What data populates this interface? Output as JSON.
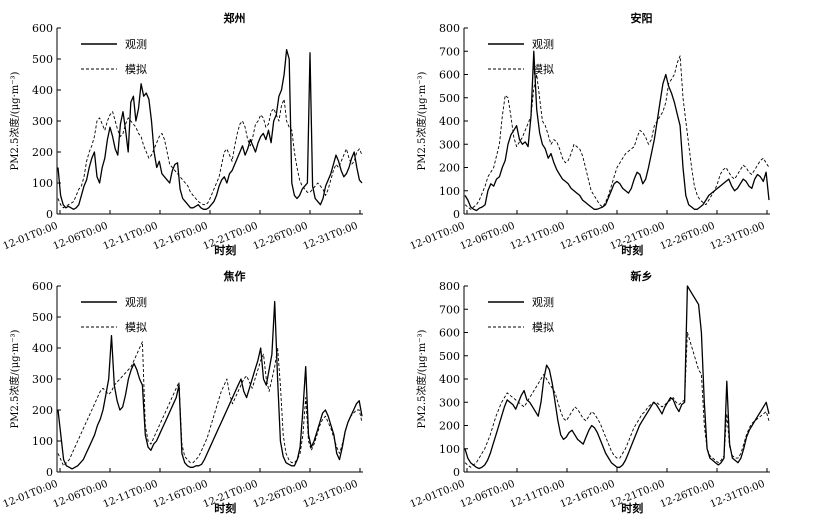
{
  "chart_data": [
    {
      "type": "line",
      "title": "郑州",
      "xlabel": "时刻",
      "ylabel": "PM2.5浓度/(μg·m⁻³)",
      "ylim": [
        0,
        600
      ],
      "yticks": [
        0,
        100,
        200,
        300,
        400,
        500,
        600
      ],
      "x_tick_labels": [
        "12-01T0:00",
        "12-06T0:00",
        "12-11T0:00",
        "12-16T0:00",
        "12-21T0:00",
        "12-26T0:00",
        "12-31T0:00"
      ],
      "legend_position": "top-left",
      "series": [
        {
          "name": "观测",
          "style": "solid",
          "values": [
            150,
            60,
            30,
            20,
            25,
            20,
            15,
            20,
            30,
            60,
            90,
            110,
            150,
            180,
            200,
            120,
            100,
            150,
            180,
            240,
            280,
            250,
            210,
            190,
            290,
            330,
            270,
            200,
            360,
            380,
            300,
            340,
            420,
            380,
            390,
            370,
            300,
            200,
            150,
            170,
            130,
            120,
            110,
            100,
            140,
            160,
            165,
            80,
            50,
            40,
            30,
            20,
            20,
            25,
            30,
            20,
            15,
            15,
            20,
            30,
            40,
            60,
            90,
            110,
            120,
            100,
            130,
            140,
            160,
            180,
            200,
            220,
            190,
            210,
            240,
            220,
            200,
            230,
            250,
            260,
            240,
            270,
            230,
            300,
            320,
            380,
            400,
            450,
            530,
            500,
            100,
            60,
            50,
            60,
            80,
            90,
            100,
            520,
            90,
            50,
            40,
            30,
            50,
            90,
            110,
            130,
            160,
            190,
            170,
            140,
            120,
            130,
            150,
            180,
            200,
            150,
            110,
            100
          ]
        },
        {
          "name": "模拟",
          "style": "dashed",
          "values": [
            50,
            30,
            20,
            25,
            30,
            35,
            40,
            60,
            80,
            90,
            120,
            170,
            200,
            220,
            250,
            300,
            310,
            290,
            270,
            300,
            320,
            330,
            300,
            270,
            250,
            260,
            290,
            310,
            300,
            290,
            280,
            260,
            250,
            220,
            200,
            180,
            190,
            210,
            230,
            250,
            260,
            240,
            200,
            160,
            150,
            140,
            130,
            120,
            110,
            100,
            90,
            70,
            60,
            50,
            40,
            35,
            30,
            30,
            40,
            60,
            80,
            100,
            120,
            160,
            200,
            210,
            190,
            170,
            220,
            260,
            290,
            300,
            280,
            240,
            220,
            250,
            290,
            300,
            320,
            310,
            280,
            290,
            330,
            340,
            320,
            300,
            350,
            370,
            300,
            280,
            270,
            200,
            150,
            110,
            90,
            80,
            70,
            70,
            80,
            90,
            100,
            90,
            80,
            60,
            80,
            110,
            140,
            160,
            150,
            170,
            190,
            210,
            180,
            160,
            170,
            200,
            210,
            190
          ]
        }
      ]
    },
    {
      "type": "line",
      "title": "安阳",
      "xlabel": "时刻",
      "ylabel": "PM2.5浓度/(μg·m⁻³)",
      "ylim": [
        0,
        800
      ],
      "yticks": [
        0,
        100,
        200,
        300,
        400,
        500,
        600,
        700,
        800
      ],
      "x_tick_labels": [
        "12-01T0:00",
        "12-06T0:00",
        "12-11T0:00",
        "12-16T0:00",
        "12-21T0:00",
        "12-26T0:00",
        "12-31T0:00"
      ],
      "legend_position": "top-left",
      "series": [
        {
          "name": "观测",
          "style": "solid",
          "values": [
            80,
            60,
            30,
            20,
            15,
            25,
            30,
            40,
            100,
            130,
            120,
            150,
            160,
            200,
            230,
            300,
            340,
            360,
            380,
            320,
            300,
            310,
            290,
            420,
            700,
            450,
            350,
            300,
            280,
            240,
            260,
            220,
            190,
            170,
            150,
            140,
            130,
            110,
            100,
            90,
            80,
            60,
            50,
            40,
            30,
            20,
            20,
            25,
            30,
            40,
            70,
            100,
            130,
            140,
            130,
            110,
            100,
            90,
            110,
            150,
            180,
            170,
            130,
            150,
            200,
            260,
            320,
            400,
            480,
            560,
            600,
            550,
            520,
            480,
            430,
            380,
            200,
            80,
            40,
            30,
            20,
            20,
            30,
            40,
            60,
            80,
            90,
            100,
            110,
            120,
            130,
            140,
            150,
            120,
            100,
            110,
            130,
            150,
            140,
            120,
            110,
            150,
            170,
            160,
            140,
            180,
            60
          ]
        },
        {
          "name": "模拟",
          "style": "dashed",
          "values": [
            40,
            30,
            20,
            30,
            40,
            60,
            90,
            120,
            160,
            180,
            200,
            250,
            300,
            420,
            510,
            500,
            420,
            330,
            290,
            310,
            330,
            360,
            390,
            420,
            540,
            600,
            500,
            400,
            380,
            340,
            300,
            320,
            310,
            280,
            240,
            220,
            230,
            260,
            300,
            290,
            280,
            250,
            200,
            150,
            100,
            80,
            60,
            40,
            30,
            50,
            80,
            120,
            160,
            200,
            220,
            240,
            260,
            270,
            280,
            290,
            330,
            360,
            350,
            330,
            300,
            320,
            380,
            400,
            420,
            440,
            480,
            560,
            580,
            600,
            650,
            680,
            500,
            400,
            300,
            200,
            120,
            80,
            60,
            50,
            40,
            60,
            80,
            100,
            130,
            170,
            190,
            200,
            180,
            160,
            150,
            170,
            190,
            210,
            200,
            180,
            170,
            190,
            210,
            230,
            240,
            220,
            200
          ]
        }
      ]
    },
    {
      "type": "line",
      "title": "焦作",
      "xlabel": "时刻",
      "ylabel": "PM2.5浓度/(μg·m⁻³)",
      "ylim": [
        0,
        600
      ],
      "yticks": [
        0,
        100,
        200,
        300,
        400,
        500,
        600
      ],
      "x_tick_labels": [
        "12-01T0:00",
        "12-06T0:00",
        "12-11T0:00",
        "12-16T0:00",
        "12-21T0:00",
        "12-26T0:00",
        "12-31T0:00"
      ],
      "legend_position": "top-left",
      "series": [
        {
          "name": "观测",
          "style": "solid",
          "values": [
            200,
            120,
            40,
            20,
            15,
            10,
            15,
            20,
            30,
            40,
            60,
            80,
            100,
            120,
            150,
            170,
            200,
            250,
            300,
            440,
            280,
            230,
            200,
            210,
            250,
            300,
            330,
            350,
            330,
            300,
            280,
            120,
            80,
            70,
            90,
            100,
            120,
            140,
            160,
            180,
            200,
            220,
            240,
            280,
            60,
            30,
            20,
            15,
            15,
            20,
            20,
            25,
            40,
            60,
            80,
            100,
            120,
            140,
            160,
            180,
            200,
            220,
            240,
            260,
            280,
            300,
            260,
            240,
            270,
            300,
            330,
            360,
            400,
            300,
            280,
            330,
            380,
            550,
            300,
            100,
            50,
            30,
            25,
            20,
            20,
            40,
            80,
            200,
            340,
            120,
            80,
            100,
            130,
            160,
            190,
            200,
            180,
            150,
            120,
            60,
            40,
            80,
            130,
            160,
            180,
            200,
            220,
            230,
            180
          ]
        },
        {
          "name": "模拟",
          "style": "dashed",
          "values": [
            60,
            40,
            20,
            30,
            40,
            60,
            80,
            100,
            120,
            140,
            160,
            180,
            200,
            220,
            240,
            260,
            270,
            260,
            250,
            260,
            280,
            290,
            300,
            310,
            320,
            330,
            340,
            360,
            380,
            400,
            420,
            150,
            100,
            90,
            110,
            130,
            150,
            170,
            190,
            210,
            230,
            250,
            270,
            290,
            90,
            50,
            40,
            30,
            30,
            40,
            50,
            70,
            90,
            110,
            140,
            170,
            200,
            230,
            260,
            280,
            300,
            250,
            220,
            240,
            260,
            280,
            300,
            310,
            290,
            270,
            300,
            330,
            360,
            380,
            300,
            260,
            300,
            340,
            400,
            280,
            120,
            60,
            40,
            30,
            30,
            40,
            60,
            120,
            240,
            100,
            70,
            90,
            120,
            150,
            170,
            180,
            160,
            140,
            110,
            80,
            60,
            90,
            130,
            160,
            180,
            190,
            200,
            200,
            160
          ]
        }
      ]
    },
    {
      "type": "line",
      "title": "新乡",
      "xlabel": "时刻",
      "ylabel": "PM2.5浓度/(μg·m⁻³)",
      "ylim": [
        0,
        800
      ],
      "yticks": [
        0,
        100,
        200,
        300,
        400,
        500,
        600,
        700,
        800
      ],
      "x_tick_labels": [
        "12-01T0:00",
        "12-06T0:00",
        "12-11T0:00",
        "12-16T0:00",
        "12-21T0:00",
        "12-26T0:00",
        "12-31T0:00"
      ],
      "legend_position": "top-left",
      "series": [
        {
          "name": "观测",
          "style": "solid",
          "values": [
            100,
            60,
            40,
            30,
            20,
            15,
            20,
            30,
            50,
            80,
            120,
            160,
            200,
            240,
            280,
            310,
            300,
            290,
            270,
            300,
            330,
            350,
            310,
            300,
            280,
            260,
            240,
            300,
            400,
            460,
            440,
            380,
            300,
            220,
            160,
            140,
            150,
            170,
            180,
            160,
            140,
            130,
            120,
            150,
            180,
            200,
            190,
            170,
            140,
            110,
            80,
            60,
            40,
            30,
            20,
            20,
            30,
            50,
            80,
            110,
            140,
            170,
            200,
            220,
            240,
            260,
            280,
            300,
            290,
            270,
            250,
            280,
            300,
            320,
            310,
            280,
            260,
            290,
            300,
            800,
            780,
            760,
            740,
            720,
            600,
            300,
            100,
            60,
            50,
            40,
            30,
            40,
            60,
            390,
            120,
            60,
            50,
            40,
            60,
            100,
            150,
            180,
            200,
            220,
            240,
            260,
            280,
            300,
            250
          ]
        },
        {
          "name": "模拟",
          "style": "dashed",
          "values": [
            40,
            30,
            20,
            30,
            40,
            60,
            80,
            100,
            130,
            160,
            200,
            240,
            270,
            300,
            320,
            340,
            330,
            320,
            310,
            300,
            290,
            280,
            300,
            320,
            340,
            360,
            380,
            400,
            420,
            400,
            380,
            360,
            340,
            300,
            260,
            230,
            220,
            240,
            260,
            280,
            270,
            250,
            230,
            220,
            240,
            260,
            250,
            230,
            210,
            180,
            150,
            120,
            90,
            70,
            60,
            60,
            80,
            100,
            130,
            160,
            190,
            210,
            230,
            250,
            260,
            280,
            290,
            300,
            300,
            290,
            280,
            290,
            300,
            310,
            320,
            300,
            290,
            300,
            310,
            600,
            560,
            520,
            480,
            440,
            420,
            200,
            100,
            70,
            60,
            50,
            40,
            50,
            70,
            250,
            110,
            70,
            60,
            60,
            80,
            120,
            160,
            190,
            210,
            220,
            230,
            240,
            250,
            260,
            220
          ]
        }
      ]
    }
  ]
}
